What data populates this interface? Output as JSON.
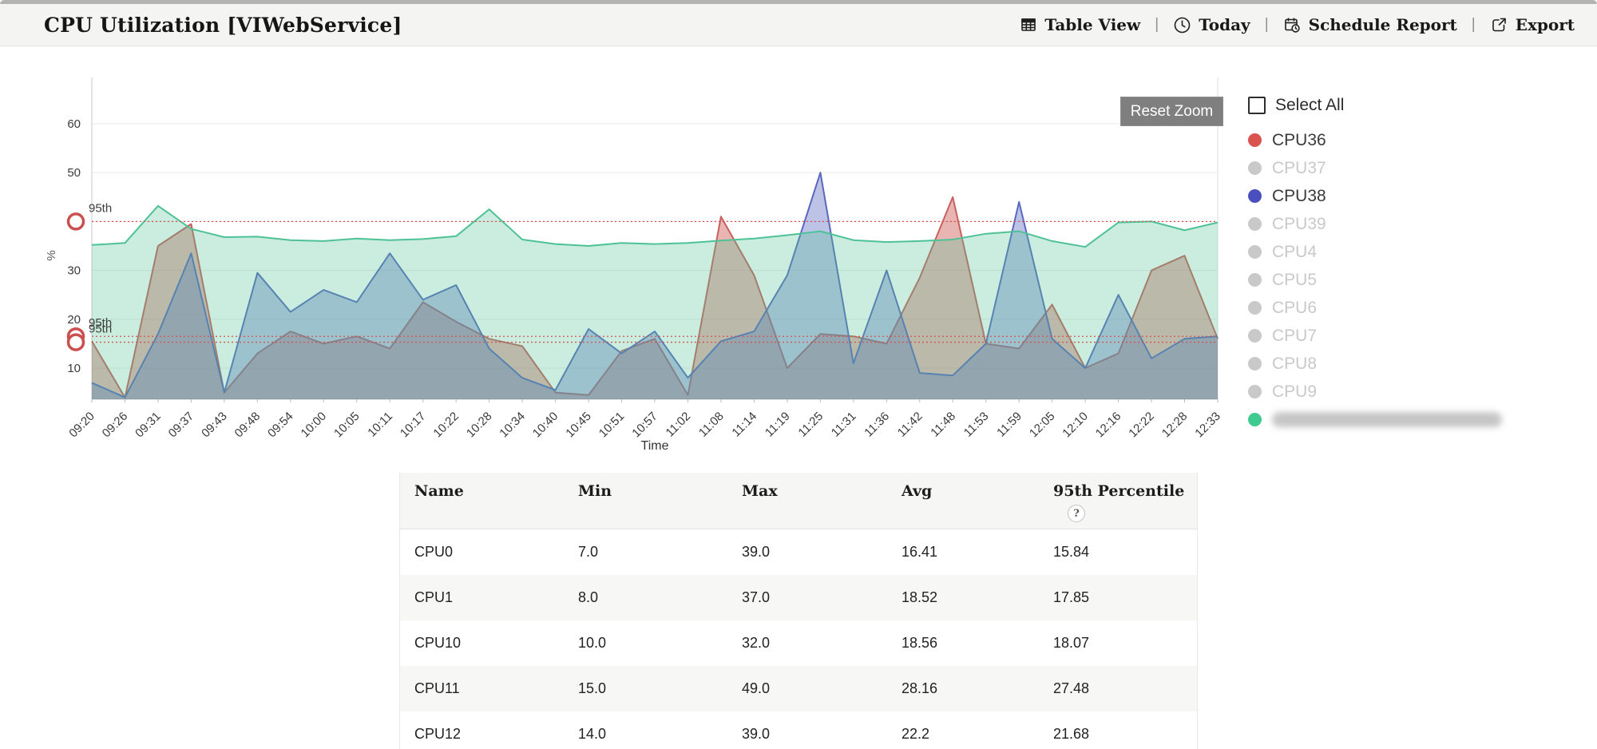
{
  "header": {
    "title": "CPU Utilization [VIWebService]",
    "divider": "|",
    "actions": [
      {
        "id": "table-view",
        "label": "Table View",
        "icon": "table-grid-icon"
      },
      {
        "id": "today",
        "label": "Today",
        "icon": "clock-icon"
      },
      {
        "id": "schedule-report",
        "label": "Schedule Report",
        "icon": "calendar-clock-icon"
      },
      {
        "id": "export",
        "label": "Export",
        "icon": "export-icon"
      }
    ]
  },
  "chart": {
    "reset_zoom_label": "Reset Zoom",
    "y_axis_label": "%",
    "x_axis_label": "Time"
  },
  "chart_data": {
    "type": "area",
    "title": "CPU Utilization [VIWebService]",
    "xlabel": "Time",
    "ylabel": "%",
    "ylim": [
      0,
      65
    ],
    "yticks": [
      10,
      20,
      30,
      40,
      50,
      60
    ],
    "grid": true,
    "legend_position": "right",
    "x": [
      "09:20",
      "09:26",
      "09:31",
      "09:37",
      "09:43",
      "09:48",
      "09:54",
      "10:00",
      "10:05",
      "10:11",
      "10:17",
      "10:22",
      "10:28",
      "10:34",
      "10:40",
      "10:45",
      "10:51",
      "10:57",
      "11:02",
      "11:08",
      "11:14",
      "11:19",
      "11:25",
      "11:31",
      "11:36",
      "11:42",
      "11:48",
      "11:53",
      "11:59",
      "12:05",
      "12:10",
      "12:16",
      "12:22",
      "12:28",
      "12:33"
    ],
    "series": [
      {
        "name": "CPU36",
        "color": "#c9605c",
        "fill": "rgba(206,91,87,0.45)",
        "values": [
          15.5,
          4,
          35,
          39.5,
          5,
          13,
          17.5,
          15,
          16.5,
          14,
          23.5,
          19.5,
          16,
          14.5,
          5,
          4.5,
          13.5,
          16,
          4.5,
          41,
          29,
          10,
          17,
          16.5,
          15,
          28.5,
          45,
          15,
          14,
          23,
          10,
          13,
          30,
          33,
          16
        ]
      },
      {
        "name": "CPU38",
        "color": "#5a68bd",
        "fill": "rgba(98,112,196,0.42)",
        "values": [
          7,
          4,
          17,
          33.5,
          5,
          29.5,
          21.5,
          26,
          23.5,
          33.5,
          24,
          27,
          14,
          8,
          5.5,
          18,
          13,
          17.5,
          8,
          15.5,
          17.5,
          29,
          50,
          11,
          30,
          9,
          8.5,
          15,
          44,
          16,
          10,
          25,
          12,
          16,
          16.5
        ]
      },
      {
        "name": "",
        "redacted": true,
        "color": "#4ec296",
        "fill": "rgba(78,194,150,0.30)",
        "values": [
          35.2,
          35.6,
          43.2,
          38.5,
          36.8,
          36.9,
          36.2,
          36,
          36.5,
          36.2,
          36.4,
          37,
          42.5,
          36.3,
          35.4,
          35,
          35.6,
          35.4,
          35.6,
          36.1,
          36.5,
          37.2,
          38,
          36.2,
          35.8,
          36,
          36.3,
          37.5,
          38,
          36,
          34.8,
          39.8,
          40,
          38.2,
          39.8
        ]
      }
    ],
    "percentile_lines": [
      {
        "label": "95th",
        "value": 40
      },
      {
        "label": "95th",
        "value": 16.5
      },
      {
        "label": "95th",
        "value": 15.3
      }
    ]
  },
  "legend": {
    "select_all_label": "Select All",
    "items": [
      {
        "label": "CPU36",
        "color": "#d9534f",
        "active": true,
        "redacted": false
      },
      {
        "label": "CPU37",
        "color": "#c9c9c9",
        "active": false,
        "redacted": false
      },
      {
        "label": "CPU38",
        "color": "#4950bd",
        "active": true,
        "redacted": false
      },
      {
        "label": "CPU39",
        "color": "#c9c9c9",
        "active": false,
        "redacted": false
      },
      {
        "label": "CPU4",
        "color": "#c9c9c9",
        "active": false,
        "redacted": false
      },
      {
        "label": "CPU5",
        "color": "#c9c9c9",
        "active": false,
        "redacted": false
      },
      {
        "label": "CPU6",
        "color": "#c9c9c9",
        "active": false,
        "redacted": false
      },
      {
        "label": "CPU7",
        "color": "#c9c9c9",
        "active": false,
        "redacted": false
      },
      {
        "label": "CPU8",
        "color": "#c9c9c9",
        "active": false,
        "redacted": false
      },
      {
        "label": "CPU9",
        "color": "#c9c9c9",
        "active": false,
        "redacted": false
      },
      {
        "label": "",
        "color": "#3fcb8f",
        "active": true,
        "redacted": true
      }
    ]
  },
  "table": {
    "columns": [
      "Name",
      "Min",
      "Max",
      "Avg",
      "95th Percentile"
    ],
    "help_badge": "?",
    "rows": [
      {
        "name": "CPU0",
        "min": "7.0",
        "max": "39.0",
        "avg": "16.41",
        "p95": "15.84"
      },
      {
        "name": "CPU1",
        "min": "8.0",
        "max": "37.0",
        "avg": "18.52",
        "p95": "17.85"
      },
      {
        "name": "CPU10",
        "min": "10.0",
        "max": "32.0",
        "avg": "18.56",
        "p95": "18.07"
      },
      {
        "name": "CPU11",
        "min": "15.0",
        "max": "49.0",
        "avg": "28.16",
        "p95": "27.48"
      },
      {
        "name": "CPU12",
        "min": "14.0",
        "max": "39.0",
        "avg": "22.2",
        "p95": "21.68"
      }
    ]
  }
}
